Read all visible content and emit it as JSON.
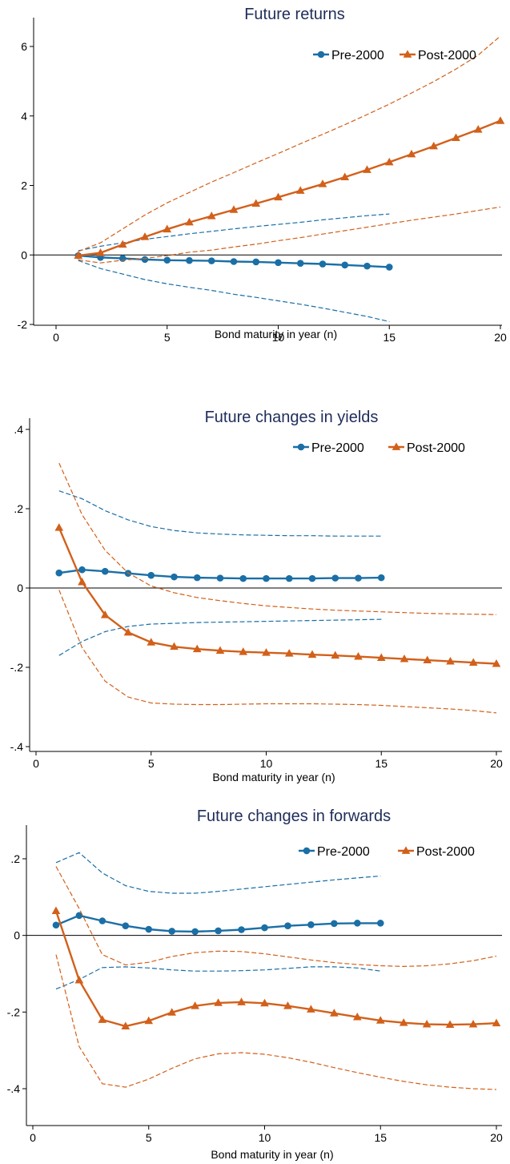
{
  "colors": {
    "pre": "#1a6fa6",
    "post": "#d2601a",
    "title": "#1f2d5a"
  },
  "chart_data": [
    {
      "type": "line",
      "title": "Future returns",
      "xlabel": "Bond maturity in year (n)",
      "ylabel": "",
      "xlim": [
        0,
        20
      ],
      "ylim": [
        -2.2,
        6.6
      ],
      "xticks": [
        0,
        5,
        10,
        15,
        20
      ],
      "yticks": [
        -2,
        0,
        2,
        4,
        6
      ],
      "ytick_labels": [
        "-2",
        "0",
        "2",
        "4",
        "6"
      ],
      "zero_line": true,
      "legend_position": "top-right",
      "series": [
        {
          "name": "Pre-2000",
          "marker": "circle",
          "x": [
            1,
            2,
            3,
            4,
            5,
            6,
            7,
            8,
            9,
            10,
            11,
            12,
            13,
            14,
            15
          ],
          "values": [
            -0.02,
            -0.07,
            -0.1,
            -0.13,
            -0.15,
            -0.16,
            -0.17,
            -0.19,
            -0.2,
            -0.22,
            -0.24,
            -0.26,
            -0.29,
            -0.32,
            -0.35
          ],
          "ci_upper": [
            0.12,
            0.25,
            0.35,
            0.45,
            0.53,
            0.61,
            0.68,
            0.75,
            0.82,
            0.88,
            0.94,
            1.01,
            1.07,
            1.13,
            1.18
          ],
          "ci_lower": [
            -0.16,
            -0.39,
            -0.55,
            -0.71,
            -0.83,
            -0.93,
            -1.02,
            -1.13,
            -1.22,
            -1.32,
            -1.42,
            -1.53,
            -1.65,
            -1.77,
            -1.92
          ]
        },
        {
          "name": "Post-2000",
          "marker": "triangle",
          "x": [
            1,
            2,
            3,
            4,
            5,
            6,
            7,
            8,
            9,
            10,
            11,
            12,
            13,
            14,
            15,
            16,
            17,
            18,
            19,
            20
          ],
          "values": [
            -0.02,
            0.06,
            0.3,
            0.52,
            0.74,
            0.94,
            1.12,
            1.3,
            1.48,
            1.66,
            1.85,
            2.04,
            2.24,
            2.45,
            2.67,
            2.9,
            3.13,
            3.37,
            3.61,
            3.86
          ],
          "ci_upper": [
            0.1,
            0.35,
            0.75,
            1.15,
            1.5,
            1.8,
            2.1,
            2.37,
            2.65,
            2.92,
            3.2,
            3.47,
            3.75,
            4.04,
            4.34,
            4.66,
            4.99,
            5.35,
            5.75,
            6.3
          ],
          "ci_lower": [
            -0.14,
            -0.23,
            -0.15,
            -0.1,
            -0.02,
            0.08,
            0.14,
            0.23,
            0.31,
            0.41,
            0.5,
            0.6,
            0.7,
            0.8,
            0.9,
            1.0,
            1.09,
            1.18,
            1.28,
            1.38
          ]
        }
      ]
    },
    {
      "type": "line",
      "title": "Future changes in yields",
      "xlabel": "Bond maturity in year (n)",
      "ylabel": "",
      "xlim": [
        0,
        20
      ],
      "ylim": [
        -0.42,
        0.42
      ],
      "xticks": [
        0,
        5,
        10,
        15,
        20
      ],
      "yticks": [
        -0.4,
        -0.2,
        0,
        0.2,
        0.4
      ],
      "ytick_labels": [
        "-.4",
        "-.2",
        "0",
        ".2",
        ".4"
      ],
      "zero_line": true,
      "legend_position": "top-right",
      "series": [
        {
          "name": "Pre-2000",
          "marker": "circle",
          "x": [
            1,
            2,
            3,
            4,
            5,
            6,
            7,
            8,
            9,
            10,
            11,
            12,
            13,
            14,
            15
          ],
          "values": [
            0.038,
            0.046,
            0.042,
            0.037,
            0.032,
            0.028,
            0.026,
            0.025,
            0.024,
            0.024,
            0.024,
            0.024,
            0.025,
            0.025,
            0.026
          ],
          "ci_upper": [
            0.245,
            0.225,
            0.195,
            0.172,
            0.155,
            0.145,
            0.139,
            0.136,
            0.134,
            0.133,
            0.132,
            0.132,
            0.131,
            0.131,
            0.131
          ],
          "ci_lower": [
            -0.17,
            -0.135,
            -0.11,
            -0.097,
            -0.091,
            -0.089,
            -0.087,
            -0.086,
            -0.085,
            -0.084,
            -0.083,
            -0.082,
            -0.081,
            -0.08,
            -0.079
          ]
        },
        {
          "name": "Post-2000",
          "marker": "triangle",
          "x": [
            1,
            2,
            3,
            4,
            5,
            6,
            7,
            8,
            9,
            10,
            11,
            12,
            13,
            14,
            15,
            16,
            17,
            18,
            19,
            20
          ],
          "values": [
            0.152,
            0.015,
            -0.068,
            -0.112,
            -0.137,
            -0.148,
            -0.154,
            -0.158,
            -0.161,
            -0.163,
            -0.165,
            -0.168,
            -0.17,
            -0.173,
            -0.176,
            -0.179,
            -0.182,
            -0.185,
            -0.188,
            -0.191
          ],
          "ci_upper": [
            0.315,
            0.185,
            0.095,
            0.038,
            0.005,
            -0.012,
            -0.024,
            -0.032,
            -0.039,
            -0.045,
            -0.049,
            -0.053,
            -0.056,
            -0.058,
            -0.06,
            -0.062,
            -0.064,
            -0.065,
            -0.066,
            -0.067
          ],
          "ci_lower": [
            -0.005,
            -0.15,
            -0.235,
            -0.275,
            -0.29,
            -0.293,
            -0.294,
            -0.294,
            -0.293,
            -0.292,
            -0.292,
            -0.292,
            -0.293,
            -0.294,
            -0.296,
            -0.299,
            -0.302,
            -0.305,
            -0.309,
            -0.315
          ]
        }
      ]
    },
    {
      "type": "line",
      "title": "Future changes in forwards",
      "xlabel": "Bond maturity in year (n)",
      "ylabel": "",
      "xlim": [
        0,
        20
      ],
      "ylim": [
        -0.42,
        0.22
      ],
      "xticks": [
        0,
        5,
        10,
        15,
        20
      ],
      "yticks": [
        -0.4,
        -0.2,
        0,
        0.2
      ],
      "ytick_labels": [
        "-.4",
        "-.2",
        "0",
        ".2"
      ],
      "zero_line": true,
      "legend_position": "top-right",
      "series": [
        {
          "name": "Pre-2000",
          "marker": "circle",
          "x": [
            1,
            2,
            3,
            4,
            5,
            6,
            7,
            8,
            9,
            10,
            11,
            12,
            13,
            14,
            15
          ],
          "values": [
            0.027,
            0.052,
            0.038,
            0.025,
            0.016,
            0.011,
            0.01,
            0.012,
            0.015,
            0.02,
            0.025,
            0.028,
            0.031,
            0.032,
            0.032
          ],
          "ci_upper": [
            0.19,
            0.216,
            0.163,
            0.13,
            0.115,
            0.11,
            0.11,
            0.115,
            0.121,
            0.127,
            0.133,
            0.139,
            0.145,
            0.15,
            0.155
          ],
          "ci_lower": [
            -0.14,
            -0.115,
            -0.084,
            -0.082,
            -0.085,
            -0.09,
            -0.093,
            -0.093,
            -0.092,
            -0.09,
            -0.086,
            -0.082,
            -0.082,
            -0.085,
            -0.093
          ]
        },
        {
          "name": "Post-2000",
          "marker": "triangle",
          "x": [
            1,
            2,
            3,
            4,
            5,
            6,
            7,
            8,
            9,
            10,
            11,
            12,
            13,
            14,
            15,
            16,
            17,
            18,
            19,
            20
          ],
          "values": [
            0.064,
            -0.117,
            -0.22,
            -0.237,
            -0.223,
            -0.201,
            -0.184,
            -0.176,
            -0.174,
            -0.177,
            -0.184,
            -0.193,
            -0.203,
            -0.213,
            -0.222,
            -0.228,
            -0.232,
            -0.233,
            -0.232,
            -0.229
          ],
          "ci_upper": [
            0.18,
            0.07,
            -0.05,
            -0.077,
            -0.07,
            -0.055,
            -0.045,
            -0.041,
            -0.042,
            -0.048,
            -0.056,
            -0.064,
            -0.071,
            -0.076,
            -0.079,
            -0.081,
            -0.079,
            -0.074,
            -0.066,
            -0.054
          ],
          "ci_lower": [
            -0.05,
            -0.29,
            -0.387,
            -0.396,
            -0.375,
            -0.347,
            -0.322,
            -0.309,
            -0.306,
            -0.31,
            -0.319,
            -0.331,
            -0.345,
            -0.358,
            -0.37,
            -0.381,
            -0.39,
            -0.396,
            -0.4,
            -0.402
          ]
        }
      ]
    }
  ]
}
